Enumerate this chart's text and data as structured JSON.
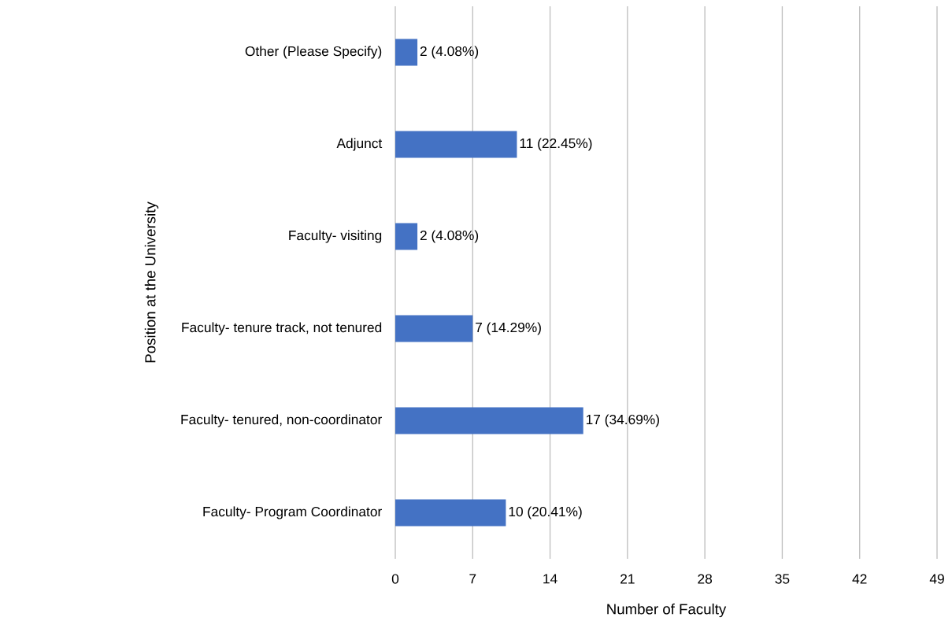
{
  "chart_data": {
    "type": "bar",
    "orientation": "horizontal",
    "categories": [
      "Other (Please Specify)",
      "Adjunct",
      "Faculty- visiting",
      "Faculty- tenure track, not tenured",
      "Faculty- tenured, non-coordinator",
      "Faculty- Program Coordinator"
    ],
    "values": [
      2,
      11,
      2,
      7,
      17,
      10
    ],
    "value_labels": [
      "2  (4.08%)",
      "11  (22.45%)",
      "2  (4.08%)",
      "7    (14.29%)",
      "17  (34.69%)",
      "10  (20.41%)"
    ],
    "color": "#4472c4",
    "xlim": [
      0,
      49
    ],
    "xticks": [
      0,
      7,
      14,
      21,
      28,
      35,
      42,
      49
    ],
    "xlabel": "Number of Faculty",
    "ylabel": "Position at the University",
    "grid": "x"
  }
}
